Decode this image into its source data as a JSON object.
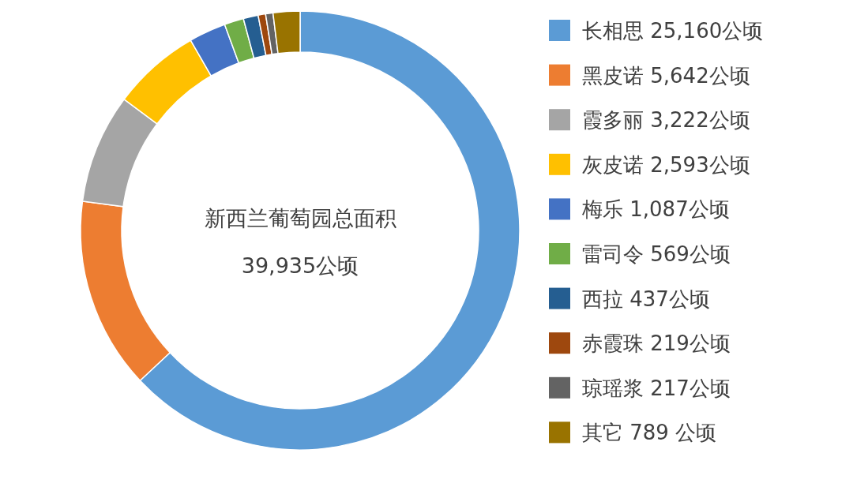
{
  "chart_data": {
    "type": "donut",
    "title": "新西兰葡萄园总面积",
    "subtitle": "39,935公顷",
    "categories": [
      "长相思",
      "黑皮诺",
      "霞多丽",
      "灰皮诺",
      "梅乐",
      "雷司令",
      "西拉",
      "赤霞珠",
      "琼瑶浆",
      "其它"
    ],
    "values": [
      25160,
      5642,
      3222,
      2593,
      1087,
      569,
      437,
      219,
      217,
      789
    ],
    "value_labels": [
      "25,160公顷",
      "5,642公顷",
      "3,222公顷",
      "2,593公顷",
      "1,087公顷",
      "569公顷",
      "437公顷",
      "219公顷",
      "217公顷",
      "789 公顷"
    ],
    "colors": [
      "#5b9bd5",
      "#ed7d31",
      "#a5a5a5",
      "#ffc000",
      "#4472c4",
      "#70ad47",
      "#255e91",
      "#9e480e",
      "#636363",
      "#997300"
    ],
    "legend": "right"
  }
}
